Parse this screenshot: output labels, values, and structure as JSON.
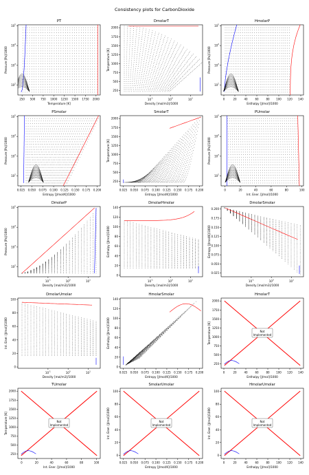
{
  "figure": {
    "title": "Consistency plots for CarbonDioxide"
  },
  "colors": {
    "isotherm": "#000000",
    "liquid": "#0000ff",
    "vapor": "#ff0000",
    "box_edge": "#000000",
    "note_fill": "#ffffff"
  },
  "chart_data": [
    {
      "id": "PT",
      "type": "scatter",
      "title": "PT",
      "xlabel": "Temperature [K]",
      "ylabel": "Pressure [Pa]/1000",
      "xlim": [
        150,
        2100
      ],
      "ylim_log": [
        1.5,
        5.05
      ],
      "xticks": [
        250,
        500,
        750,
        1000,
        1250,
        1500,
        1750,
        2000
      ],
      "ytick_labels": [
        "10^2",
        "10^3",
        "10^4",
        "10^5"
      ],
      "ytick_exps": [
        2,
        3,
        4,
        5
      ],
      "implemented": true
    },
    {
      "id": "DmolarT",
      "type": "scatter",
      "title": "DmolarT",
      "xlabel": "Density [mol/m3]/1000",
      "ylabel": "Temperature [K]",
      "xlim_log": [
        -2.5,
        1.6
      ],
      "ylim": [
        130,
        2080
      ],
      "xtick_labels": [
        "10^-1",
        "10^0",
        "10^1"
      ],
      "xtick_exps": [
        -1,
        0,
        1
      ],
      "yticks": [
        250,
        500,
        750,
        1000,
        1250,
        1500,
        1750,
        2000
      ],
      "implemented": true
    },
    {
      "id": "HmolarP",
      "type": "scatter",
      "title": "HmolarP",
      "xlabel": "Enthalpy [J/mol]/1000",
      "ylabel": "Pressure [Pa]/1000",
      "xlim": [
        -5,
        145
      ],
      "ylim_log": [
        1.5,
        5.05
      ],
      "xticks": [
        0,
        20,
        40,
        60,
        80,
        100,
        120,
        140
      ],
      "ytick_labels": [
        "10^2",
        "10^3",
        "10^4",
        "10^5"
      ],
      "ytick_exps": [
        2,
        3,
        4,
        5
      ],
      "implemented": true
    },
    {
      "id": "PSmolar",
      "type": "scatter",
      "title": "PSmolar",
      "xlabel": "Entropy [J/mol/K]/1000",
      "ylabel": "Pressure [Pa]/1000",
      "xlim": [
        0.018,
        0.207
      ],
      "ylim_log": [
        1.5,
        5.05
      ],
      "xticks": [
        0.025,
        0.05,
        0.075,
        0.1,
        0.125,
        0.15,
        0.175,
        0.2
      ],
      "xtick_labels": [
        "0.025",
        "0.050",
        "0.075",
        "0.100",
        "0.125",
        "0.150",
        "0.175",
        "0.200"
      ],
      "ytick_labels": [
        "10^2",
        "10^3",
        "10^4",
        "10^5"
      ],
      "ytick_exps": [
        2,
        3,
        4,
        5
      ],
      "implemented": true
    },
    {
      "id": "SmolarT",
      "type": "scatter",
      "title": "SmolarT",
      "xlabel": "Entropy [J/mol/K]/1000",
      "ylabel": "Temperature [K]",
      "xlim": [
        0.018,
        0.207
      ],
      "ylim": [
        130,
        2080
      ],
      "xticks": [
        0.025,
        0.05,
        0.075,
        0.1,
        0.125,
        0.15,
        0.175,
        0.2
      ],
      "xtick_labels": [
        "0.025",
        "0.050",
        "0.075",
        "0.100",
        "0.125",
        "0.150",
        "0.175",
        "0.200"
      ],
      "yticks": [
        250,
        500,
        750,
        1000,
        1250,
        1500,
        1750,
        2000
      ],
      "implemented": true
    },
    {
      "id": "PUmolar",
      "type": "scatter",
      "title": "PUmolar",
      "xlabel": "Int. Ener. [J/mol]/1000",
      "ylabel": "Pressure [Pa]/1000",
      "xlim": [
        -5,
        102
      ],
      "ylim_log": [
        1.5,
        5.05
      ],
      "xticks": [
        0,
        20,
        40,
        60,
        80,
        100
      ],
      "ytick_labels": [
        "10^2",
        "10^3",
        "10^4",
        "10^5"
      ],
      "ytick_exps": [
        2,
        3,
        4,
        5
      ],
      "implemented": true
    },
    {
      "id": "DmolarP",
      "type": "scatter",
      "title": "DmolarP",
      "xlabel": "Density [mol/m3]/1000",
      "ylabel": "Pressure [Pa]/1000",
      "xlim_log": [
        -2.5,
        1.6
      ],
      "ylim_log": [
        1.5,
        5.05
      ],
      "xtick_labels": [
        "10^-1",
        "10^0",
        "10^1"
      ],
      "xtick_exps": [
        -1,
        0,
        1
      ],
      "ytick_labels": [
        "10^2",
        "10^3",
        "10^4",
        "10^5"
      ],
      "ytick_exps": [
        2,
        3,
        4,
        5
      ],
      "implemented": true
    },
    {
      "id": "DmolarHmolar",
      "type": "scatter",
      "title": "DmolarHmolar",
      "xlabel": "Density [mol/m3]/1000",
      "ylabel": "Enthalpy [J/mol]/1000",
      "xlim_log": [
        -2.5,
        1.6
      ],
      "ylim": [
        -3,
        142
      ],
      "xtick_labels": [
        "10^-1",
        "10^0",
        "10^1"
      ],
      "xtick_exps": [
        -1,
        0,
        1
      ],
      "yticks": [
        0,
        20,
        40,
        60,
        80,
        100,
        120,
        140
      ],
      "implemented": true
    },
    {
      "id": "DmolarSmolar",
      "type": "scatter",
      "title": "DmolarSmolar",
      "xlabel": "Density [mol/m3]/1000",
      "ylabel": "Entropy [J/mol/K]/1000",
      "xlim_log": [
        -2.5,
        1.6
      ],
      "ylim": [
        0.015,
        0.207
      ],
      "xtick_labels": [
        "10^-1",
        "10^0",
        "10^1"
      ],
      "xtick_exps": [
        -1,
        0,
        1
      ],
      "yticks": [
        0.025,
        0.05,
        0.075,
        0.1,
        0.125,
        0.15,
        0.175,
        0.2
      ],
      "ytick_labels": [
        "0.025",
        "0.050",
        "0.075",
        "0.100",
        "0.125",
        "0.150",
        "0.175",
        "0.200"
      ],
      "implemented": true
    },
    {
      "id": "DmolarUmolar",
      "type": "scatter",
      "title": "DmolarUmolar",
      "xlabel": "Density [mol/m3]/1000",
      "ylabel": "Int. Ener. [J/mol]/1000",
      "xlim_log": [
        -2.5,
        1.6
      ],
      "ylim": [
        -2,
        102
      ],
      "xtick_labels": [
        "10^-1",
        "10^0",
        "10^1"
      ],
      "xtick_exps": [
        -1,
        0,
        1
      ],
      "yticks": [
        0,
        20,
        40,
        60,
        80,
        100
      ],
      "implemented": true
    },
    {
      "id": "HmolarSmolar",
      "type": "scatter",
      "title": "HmolarSmolar",
      "xlabel": "Entropy [J/mol/K]/1000",
      "ylabel": "Enthalpy [J/mol]/1000",
      "xlim": [
        0.018,
        0.207
      ],
      "ylim": [
        -3,
        142
      ],
      "xticks": [
        0.025,
        0.05,
        0.075,
        0.1,
        0.125,
        0.15,
        0.175,
        0.2
      ],
      "xtick_labels": [
        "0.025",
        "0.050",
        "0.075",
        "0.100",
        "0.125",
        "0.150",
        "0.175",
        "0.200"
      ],
      "yticks": [
        0,
        20,
        40,
        60,
        80,
        100,
        120,
        140
      ],
      "implemented": true
    },
    {
      "id": "HmolarT",
      "type": "scatter",
      "title": "HmolarT",
      "xlabel": "Enthalpy [J/mol]/1000",
      "ylabel": "Temperature [K]",
      "xlim": [
        -5,
        145
      ],
      "ylim": [
        130,
        2080
      ],
      "xticks": [
        0,
        20,
        40,
        60,
        80,
        100,
        120,
        140
      ],
      "yticks": [
        250,
        500,
        750,
        1000,
        1250,
        1500,
        1750,
        2000
      ],
      "implemented": false,
      "note": "Not\nImplemented"
    },
    {
      "id": "TUmolar",
      "type": "scatter",
      "title": "TUmolar",
      "xlabel": "Int. Ener. [J/mol]/1000",
      "ylabel": "Temperature [K]",
      "xlim": [
        -5,
        105
      ],
      "ylim": [
        130,
        2080
      ],
      "xticks": [
        0,
        20,
        40,
        60,
        80,
        100
      ],
      "yticks": [
        250,
        500,
        750,
        1000,
        1250,
        1500,
        1750,
        2000
      ],
      "implemented": false,
      "note": "Not\nImplemented"
    },
    {
      "id": "SmolarUmolar",
      "type": "scatter",
      "title": "SmolarUmolar",
      "xlabel": "Entropy [J/mol/K]/1000",
      "ylabel": "Int. Ener. [J/mol]/1000",
      "xlim": [
        0.018,
        0.207
      ],
      "ylim": [
        -5,
        105
      ],
      "xticks": [
        0.025,
        0.05,
        0.075,
        0.1,
        0.125,
        0.15,
        0.175,
        0.2
      ],
      "xtick_labels": [
        "0.025",
        "0.050",
        "0.075",
        "0.100",
        "0.125",
        "0.150",
        "0.175",
        "0.200"
      ],
      "yticks": [
        0,
        20,
        40,
        60,
        80,
        100
      ],
      "implemented": false,
      "note": "Not\nImplemented"
    },
    {
      "id": "HmolarUmolar",
      "type": "scatter",
      "title": "HmolarUmolar",
      "xlabel": "Enthalpy [J/mol]/1000",
      "ylabel": "Int. Ener. [J/mol]/1000",
      "xlim": [
        -5,
        145
      ],
      "ylim": [
        -5,
        105
      ],
      "xticks": [
        0,
        20,
        40,
        60,
        80,
        100,
        120,
        140
      ],
      "yticks": [
        0,
        20,
        40,
        60,
        80,
        100
      ],
      "implemented": false,
      "note": "Not\nImplemented"
    }
  ]
}
